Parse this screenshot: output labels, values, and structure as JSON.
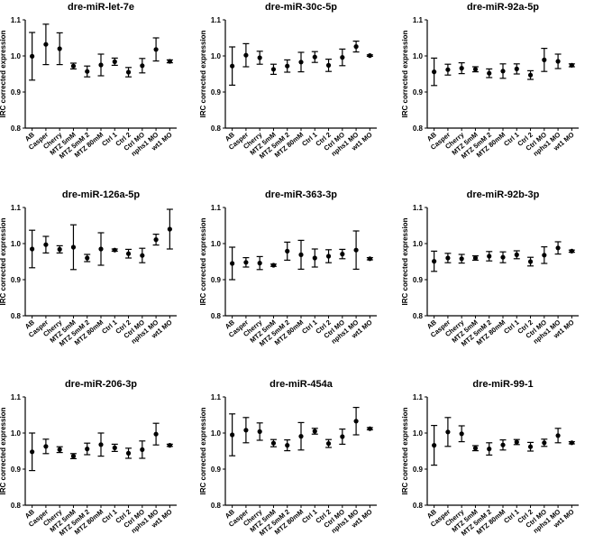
{
  "chart_data": [
    {
      "type": "scatter",
      "title": "dre-miR-let-7e",
      "ylabel": "IRC corrected expression",
      "ylim": [
        0.8,
        1.1
      ],
      "yticks": [
        "0.8",
        "0.9",
        "1.0",
        "1.1"
      ],
      "categories": [
        "AB",
        "Casper",
        "Cherry",
        "MTZ 5mM",
        "MTZ 5mM 2",
        "MTZ 80mM",
        "Ctrl 1",
        "Ctrl 2",
        "Ctrl MO",
        "nphs1 MO",
        "wt1 MO"
      ],
      "means": [
        0.999,
        1.032,
        1.02,
        0.972,
        0.957,
        0.975,
        0.984,
        0.955,
        0.973,
        1.018,
        0.985
      ],
      "errors": [
        0.066,
        0.056,
        0.044,
        0.008,
        0.015,
        0.03,
        0.01,
        0.013,
        0.02,
        0.032,
        0.004
      ]
    },
    {
      "type": "scatter",
      "title": "dre-miR-30c-5p",
      "ylabel": "IRC corrected expression",
      "ylim": [
        0.8,
        1.1
      ],
      "yticks": [
        "0.8",
        "0.9",
        "1.0",
        "1.1"
      ],
      "categories": [
        "AB",
        "Casper",
        "Cherry",
        "MTZ 5mM",
        "MTZ 5mM 2",
        "MTZ 80mM",
        "Ctrl 1",
        "Ctrl 2",
        "Ctrl MO",
        "nphs1 MO",
        "wt1 MO"
      ],
      "means": [
        0.972,
        1.002,
        0.995,
        0.963,
        0.972,
        0.983,
        0.997,
        0.974,
        0.996,
        1.026,
        1.001
      ],
      "errors": [
        0.053,
        0.032,
        0.018,
        0.014,
        0.017,
        0.027,
        0.015,
        0.017,
        0.023,
        0.015,
        0.002
      ]
    },
    {
      "type": "scatter",
      "title": "dre-miR-92a-5p",
      "ylabel": "IRC corrected expression",
      "ylim": [
        0.8,
        1.1
      ],
      "yticks": [
        "0.8",
        "0.9",
        "1.0",
        "1.1"
      ],
      "categories": [
        "AB",
        "Casper",
        "Cherry",
        "MTZ 5mM",
        "MTZ 5mM 2",
        "MTZ 80mM",
        "Ctrl 1",
        "Ctrl 2",
        "Ctrl MO",
        "nphs1 MO",
        "wt1 MO"
      ],
      "means": [
        0.956,
        0.962,
        0.966,
        0.963,
        0.952,
        0.958,
        0.964,
        0.947,
        0.989,
        0.985,
        0.974
      ],
      "errors": [
        0.038,
        0.015,
        0.015,
        0.007,
        0.012,
        0.02,
        0.014,
        0.012,
        0.032,
        0.02,
        0.004
      ]
    },
    {
      "type": "scatter",
      "title": "dre-miR-126a-5p",
      "ylabel": "IRC corrected expression",
      "ylim": [
        0.8,
        1.1
      ],
      "yticks": [
        "0.8",
        "0.9",
        "1.0",
        "1.1"
      ],
      "categories": [
        "AB",
        "Casper",
        "Cherry",
        "MTZ 5mM",
        "MTZ 5mM 2",
        "MTZ 80mM",
        "Ctrl 1",
        "Ctrl 2",
        "Ctrl MO",
        "nphs1 MO",
        "wt1 MO"
      ],
      "means": [
        0.985,
        0.997,
        0.984,
        0.99,
        0.96,
        0.985,
        0.982,
        0.972,
        0.967,
        1.011,
        1.04
      ],
      "errors": [
        0.052,
        0.023,
        0.01,
        0.062,
        0.01,
        0.045,
        0.003,
        0.012,
        0.02,
        0.015,
        0.055
      ]
    },
    {
      "type": "scatter",
      "title": "dre-miR-363-3p",
      "ylabel": "IRC corrected expression",
      "ylim": [
        0.8,
        1.1
      ],
      "yticks": [
        "0.8",
        "0.9",
        "1.0",
        "1.1"
      ],
      "categories": [
        "AB",
        "Casper",
        "Cherry",
        "MTZ 5mM",
        "MTZ 5mM 2",
        "MTZ 80mM",
        "Ctrl 1",
        "Ctrl 2",
        "Ctrl MO",
        "nphs1 MO",
        "wt1 MO"
      ],
      "means": [
        0.945,
        0.948,
        0.946,
        0.94,
        0.979,
        0.969,
        0.96,
        0.965,
        0.971,
        0.982,
        0.958
      ],
      "errors": [
        0.045,
        0.013,
        0.018,
        0.003,
        0.025,
        0.04,
        0.025,
        0.018,
        0.013,
        0.053,
        0.003
      ]
    },
    {
      "type": "scatter",
      "title": "dre-miR-92b-3p",
      "ylabel": "IRC corrected expression",
      "ylim": [
        0.8,
        1.1
      ],
      "yticks": [
        "0.8",
        "0.9",
        "1.0",
        "1.1"
      ],
      "categories": [
        "AB",
        "Casper",
        "Cherry",
        "MTZ 5mM",
        "MTZ 5mM 2",
        "MTZ 80mM",
        "Ctrl 1",
        "Ctrl 2",
        "Ctrl MO",
        "nphs1 MO",
        "wt1 MO"
      ],
      "means": [
        0.951,
        0.96,
        0.958,
        0.96,
        0.965,
        0.962,
        0.969,
        0.95,
        0.968,
        0.988,
        0.979
      ],
      "errors": [
        0.028,
        0.013,
        0.012,
        0.006,
        0.013,
        0.015,
        0.011,
        0.012,
        0.023,
        0.017,
        0.003
      ]
    },
    {
      "type": "scatter",
      "title": "dre-miR-206-3p",
      "ylabel": "IRC corrected expression",
      "ylim": [
        0.8,
        1.1
      ],
      "yticks": [
        "0.8",
        "0.9",
        "1.0",
        "1.1"
      ],
      "categories": [
        "AB",
        "Casper",
        "Cherry",
        "MTZ 5mM",
        "MTZ 5mM 2",
        "MTZ 80mM",
        "Ctrl 1",
        "Ctrl 2",
        "Ctrl MO",
        "nphs1 MO",
        "wt1 MO"
      ],
      "means": [
        0.948,
        0.963,
        0.954,
        0.936,
        0.956,
        0.968,
        0.959,
        0.944,
        0.954,
        0.997,
        0.966
      ],
      "errors": [
        0.052,
        0.02,
        0.008,
        0.007,
        0.016,
        0.032,
        0.01,
        0.014,
        0.024,
        0.03,
        0.003
      ]
    },
    {
      "type": "scatter",
      "title": "dre-miR-454a",
      "ylabel": "IRC corrected expression",
      "ylim": [
        0.8,
        1.1
      ],
      "yticks": [
        "0.8",
        "0.9",
        "1.0",
        "1.1"
      ],
      "categories": [
        "AB",
        "Casper",
        "Cherry",
        "MTZ 5mM",
        "MTZ 5mM 2",
        "MTZ 80mM",
        "Ctrl 1",
        "Ctrl 2",
        "Ctrl MO",
        "nphs1 MO",
        "wt1 MO"
      ],
      "means": [
        0.995,
        1.008,
        1.004,
        0.972,
        0.966,
        0.991,
        1.005,
        0.971,
        0.99,
        1.033,
        1.012
      ],
      "errors": [
        0.058,
        0.035,
        0.024,
        0.01,
        0.015,
        0.038,
        0.008,
        0.011,
        0.021,
        0.038,
        0.003
      ]
    },
    {
      "type": "scatter",
      "title": "dre-miR-99-1",
      "ylabel": "IRC corrected expression",
      "ylim": [
        0.8,
        1.1
      ],
      "yticks": [
        "0.8",
        "0.9",
        "1.0",
        "1.1"
      ],
      "categories": [
        "AB",
        "Casper",
        "Cherry",
        "MTZ 5mM",
        "MTZ 5mM 2",
        "MTZ 80mM",
        "Ctrl 1",
        "Ctrl 2",
        "Ctrl MO",
        "nphs1 MO",
        "wt1 MO"
      ],
      "means": [
        0.966,
        1.003,
        0.998,
        0.958,
        0.956,
        0.967,
        0.975,
        0.962,
        0.973,
        0.993,
        0.973
      ],
      "errors": [
        0.055,
        0.04,
        0.022,
        0.007,
        0.017,
        0.014,
        0.007,
        0.012,
        0.01,
        0.02,
        0.003
      ]
    }
  ]
}
